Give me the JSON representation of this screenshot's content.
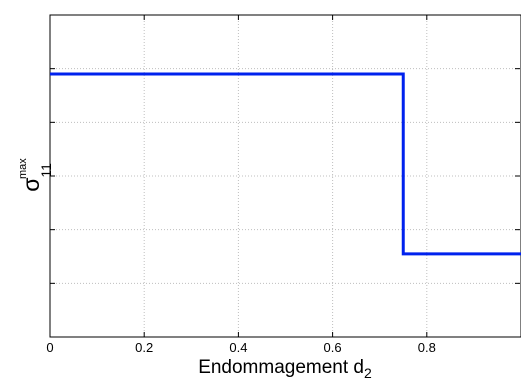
{
  "chart_data": {
    "type": "line",
    "xlabel": "Endommagement d",
    "xlabel_subscript": "2",
    "ylabel": "σ",
    "ylabel_subscript": "11",
    "ylabel_superscript": "max",
    "xlim": [
      0,
      1
    ],
    "ylim": [
      0,
      6
    ],
    "x_ticks": [
      0,
      0.2,
      0.4,
      0.6,
      0.8,
      1.0
    ],
    "x_tick_labels": [
      "0",
      "0.2",
      "0.4",
      "0.6",
      "0.8",
      ""
    ],
    "y_ticks": [
      1,
      2,
      3,
      4,
      5,
      6
    ],
    "y_tick_labels": [
      "",
      "",
      "",
      "",
      "",
      ""
    ],
    "grid": true,
    "series": [
      {
        "color": "#0022ee",
        "x": [
          0,
          0.75,
          0.75,
          1.0
        ],
        "y": [
          4.9,
          4.9,
          1.55,
          1.55
        ]
      }
    ]
  }
}
